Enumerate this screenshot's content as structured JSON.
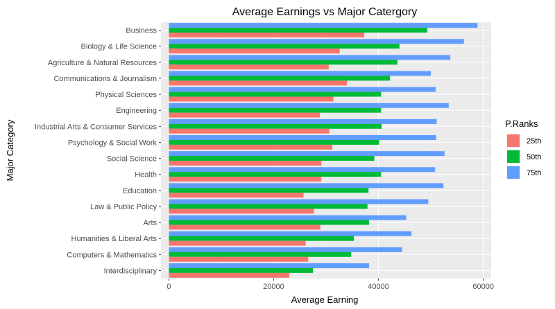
{
  "chart_data": {
    "type": "bar",
    "orientation": "horizontal",
    "title": "Average Earnings vs Major Catergory",
    "xlabel": "Average Earning",
    "ylabel": "Major Category",
    "xlim": [
      -1500,
      61500
    ],
    "xticks": [
      0,
      20000,
      40000,
      60000
    ],
    "xtick_labels": [
      "0",
      "20000",
      "40000",
      "60000"
    ],
    "grid": true,
    "legend": {
      "title": "P.Ranks",
      "placement": "right"
    },
    "categories": [
      "Business",
      "Biology & Life Science",
      "Agriculture & Natural Resources",
      "Communications & Journalism",
      "Physical Sciences",
      "Engineering",
      "Industrial Arts & Consumer Services",
      "Psychology & Social Work",
      "Social Science",
      "Health",
      "Education",
      "Law & Public Policy",
      "Arts",
      "Humanities & Liberal Arts",
      "Computers & Mathematics",
      "Interdisciplinary"
    ],
    "series": [
      {
        "name": "25th",
        "color": "#F8766D",
        "values": [
          37300,
          32600,
          30500,
          34000,
          31400,
          28800,
          30600,
          31200,
          29100,
          29100,
          25700,
          27700,
          28900,
          26100,
          26600,
          23000
        ]
      },
      {
        "name": "50th",
        "color": "#00BA38",
        "values": [
          49300,
          44000,
          43600,
          42200,
          40500,
          40500,
          40600,
          40100,
          39200,
          40500,
          38100,
          37900,
          38200,
          35300,
          34800,
          27500
        ]
      },
      {
        "name": "75th",
        "color": "#619CFF",
        "values": [
          58900,
          56300,
          53700,
          50000,
          50900,
          53400,
          51100,
          51000,
          52600,
          50800,
          52400,
          49500,
          45300,
          46300,
          44500,
          38200
        ]
      }
    ]
  }
}
